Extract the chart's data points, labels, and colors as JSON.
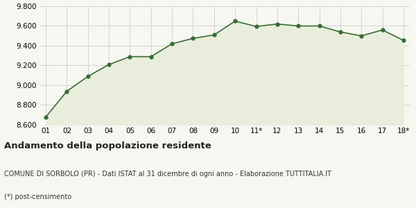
{
  "x_labels": [
    "01",
    "02",
    "03",
    "04",
    "05",
    "06",
    "07",
    "08",
    "09",
    "10",
    "11*",
    "12",
    "13",
    "14",
    "15",
    "16",
    "17",
    "18*"
  ],
  "x_values": [
    0,
    1,
    2,
    3,
    4,
    5,
    6,
    7,
    8,
    9,
    10,
    11,
    12,
    13,
    14,
    15,
    16,
    17
  ],
  "y_values": [
    8680,
    8940,
    9090,
    9210,
    9290,
    9290,
    9420,
    9475,
    9510,
    9650,
    9595,
    9620,
    9600,
    9600,
    9540,
    9500,
    9560,
    9455
  ],
  "ylim": [
    8600,
    9800
  ],
  "yticks": [
    8600,
    8800,
    9000,
    9200,
    9400,
    9600,
    9800
  ],
  "line_color": "#3a6b35",
  "fill_color": "#e8eddc",
  "marker_color": "#3a6b35",
  "bg_color": "#f7f7f2",
  "plot_bg_color": "#f7f7f2",
  "title": "Andamento della popolazione residente",
  "subtitle": "COMUNE DI SORBOLO (PR) - Dati ISTAT al 31 dicembre di ogni anno - Elaborazione TUTTITALIA.IT",
  "footnote": "(*) post-censimento",
  "title_fontsize": 9.5,
  "subtitle_fontsize": 7,
  "footnote_fontsize": 7,
  "tick_fontsize": 7.5,
  "grid_color": "#cccccc"
}
